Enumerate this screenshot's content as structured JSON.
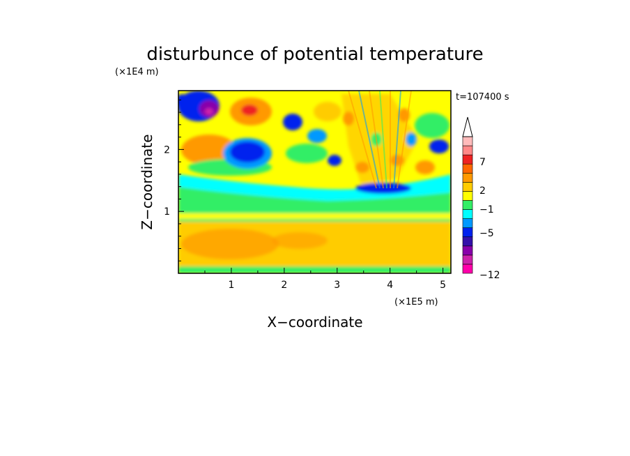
{
  "chart_data": {
    "type": "heatmap",
    "title": "disturbunce of potential temperature",
    "xlabel": "X−coordinate",
    "ylabel": "Z−coordinate",
    "x_scale_label": "(×1E5 m)",
    "y_scale_label": "(×1E4 m)",
    "time_label": "t=107400 s",
    "xlim": [
      0,
      5.15
    ],
    "ylim": [
      0,
      2.95
    ],
    "x_ticks": [
      1,
      2,
      3,
      4,
      5
    ],
    "y_ticks": [
      1,
      2
    ],
    "colorbar": {
      "tick_labels": [
        "7",
        "2",
        "−1",
        "−5",
        "−12"
      ],
      "colors": [
        "#ff00aa",
        "#cc22aa",
        "#8800aa",
        "#3311aa",
        "#0022ee",
        "#0099ff",
        "#00ffff",
        "#33ee66",
        "#ffff00",
        "#ffcc00",
        "#ff9900",
        "#ff6600",
        "#ee2222",
        "#ff8888",
        "#ffbbbb"
      ],
      "extend_max": true
    }
  }
}
